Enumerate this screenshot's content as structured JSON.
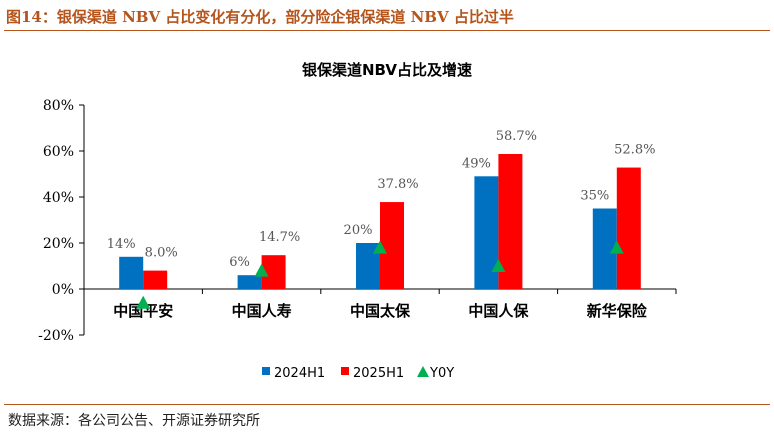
{
  "figure_title": "图14：银保渠道 NBV 占比变化有分化，部分险企银保渠道 NBV 占比过半",
  "source": "数据来源：各公司公告、开源证券研究所",
  "colors": {
    "s2024": "#0070c0",
    "s2025": "#ff0000",
    "yoy": "#00b050",
    "title": "#b5541b"
  },
  "chart_data": {
    "type": "bar",
    "title": "银保渠道NBV占比及增速",
    "categories": [
      "中国平安",
      "中国人寿",
      "中国太保",
      "中国人保",
      "新华保险"
    ],
    "series": [
      {
        "name": "2024H1",
        "values": [
          14,
          6,
          20,
          49,
          35
        ],
        "labels": [
          "14%",
          "6%",
          "20%",
          "49%",
          "35%"
        ]
      },
      {
        "name": "2025H1",
        "values": [
          8.0,
          14.7,
          37.8,
          58.7,
          52.8
        ],
        "labels": [
          "8.0%",
          "14.7%",
          "37.8%",
          "58.7%",
          "52.8%"
        ]
      },
      {
        "name": "Y0Y",
        "type": "scatter",
        "values": [
          -6,
          8,
          18,
          10,
          18
        ]
      }
    ],
    "ylim": [
      -20,
      80
    ],
    "yticks": [
      "-20%",
      "0%",
      "20%",
      "40%",
      "60%",
      "80%"
    ],
    "ytick_values": [
      -20,
      0,
      20,
      40,
      60,
      80
    ],
    "legend": "bottom"
  }
}
